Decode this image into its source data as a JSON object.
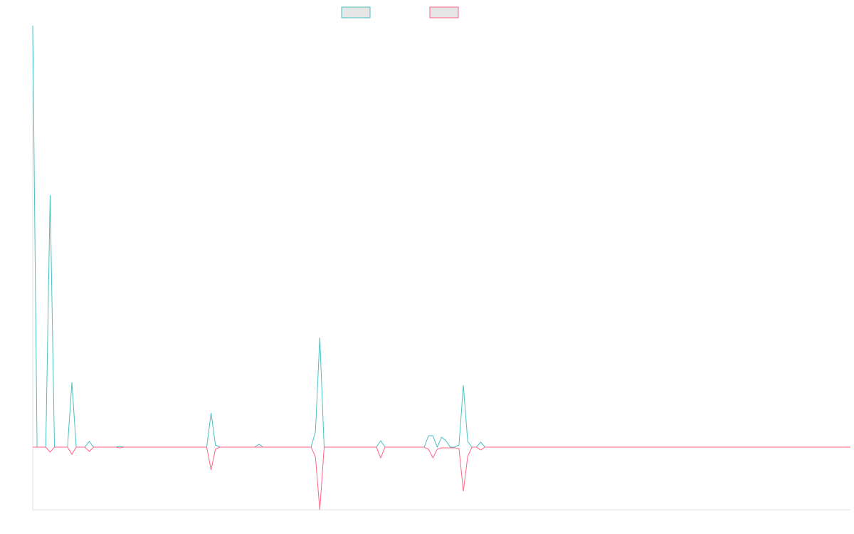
{
  "chart_data": {
    "type": "line",
    "xlim": [
      0,
      188
    ],
    "ylim": [
      -88,
      592
    ],
    "series": [
      {
        "color": "#4bc0c0",
        "x": [
          0,
          1,
          3,
          4,
          5,
          8,
          9,
          10,
          12,
          13,
          14,
          19,
          20,
          21,
          40,
          41,
          42,
          43,
          51,
          52,
          53,
          64,
          65,
          66,
          67,
          79,
          80,
          81,
          90,
          91,
          92,
          93,
          94,
          95,
          96,
          97,
          98,
          99,
          100,
          101,
          102,
          103,
          104,
          188
        ],
        "values": [
          592,
          0,
          0,
          354,
          0,
          0,
          91,
          0,
          0,
          8,
          0,
          0,
          1,
          0,
          0,
          48,
          3,
          0,
          0,
          4,
          0,
          0,
          22,
          154,
          0,
          0,
          9,
          0,
          0,
          16,
          16,
          0,
          14,
          9,
          0,
          0,
          3,
          87,
          8,
          0,
          0,
          7,
          0,
          0
        ]
      },
      {
        "color": "#ff6384",
        "x": [
          0,
          3,
          4,
          5,
          8,
          9,
          10,
          12,
          13,
          14,
          19,
          20,
          21,
          40,
          41,
          42,
          43,
          64,
          65,
          66,
          67,
          79,
          80,
          81,
          90,
          91,
          92,
          93,
          94,
          95,
          96,
          97,
          98,
          99,
          100,
          101,
          102,
          103,
          104,
          188
        ],
        "values": [
          0,
          0,
          -7,
          0,
          0,
          -10,
          0,
          0,
          -6,
          0,
          0,
          -1,
          0,
          0,
          -32,
          -3,
          0,
          0,
          -14,
          -88,
          0,
          0,
          -15,
          0,
          0,
          -3,
          -15,
          -3,
          -1,
          -1,
          -1,
          -1,
          -2,
          -62,
          -13,
          0,
          0,
          -4,
          0,
          0
        ]
      }
    ]
  }
}
